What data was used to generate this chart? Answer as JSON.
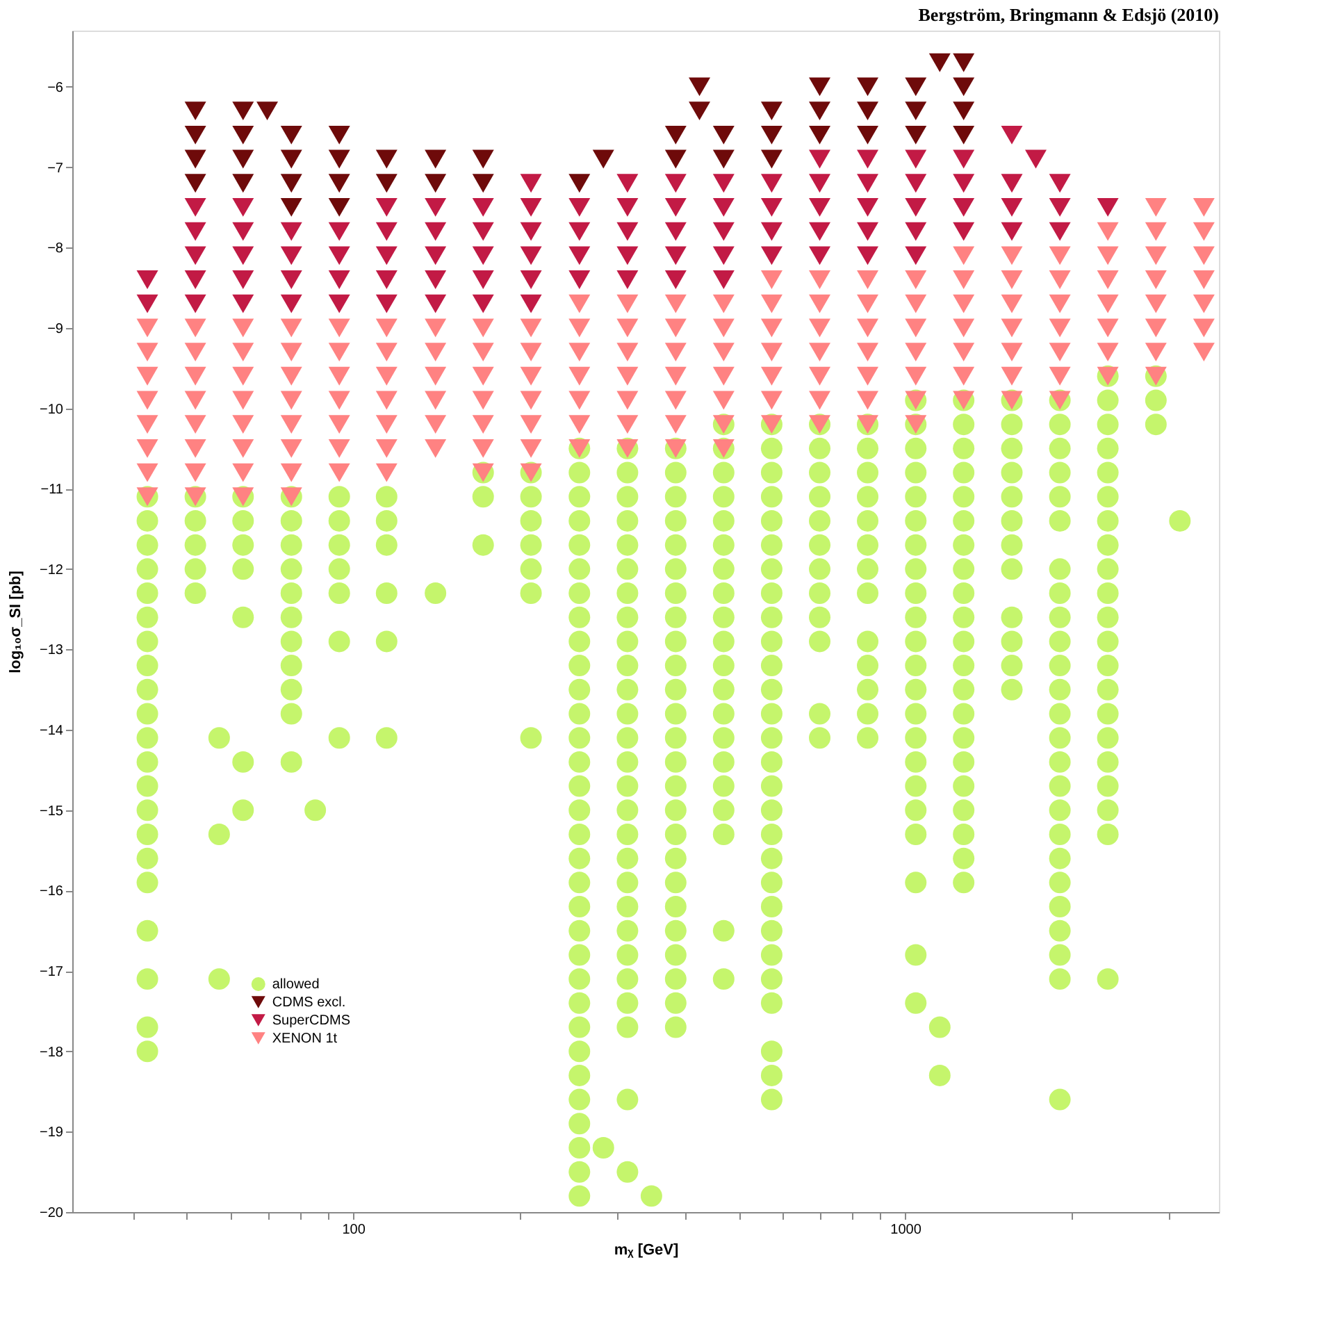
{
  "chart_data": {
    "type": "scatter",
    "xlabel": "mᵪ [GeV]",
    "ylabel": "log₁₀σ_SI [pb]",
    "annotations": [
      "Bergström, Bringmann & Edsjö (2010)"
    ],
    "log": "x",
    "xlim": [
      31,
      3700
    ],
    "ylim": [
      -20,
      -5.3
    ],
    "xticks": [
      {
        "value": 40,
        "label": null
      },
      {
        "value": 50,
        "label": null
      },
      {
        "value": 60,
        "label": null
      },
      {
        "value": 70,
        "label": null
      },
      {
        "value": 80,
        "label": null
      },
      {
        "value": 90,
        "label": null
      },
      100,
      {
        "value": 200,
        "label": null
      },
      {
        "value": 300,
        "label": null
      },
      {
        "value": 400,
        "label": null
      },
      {
        "value": 500,
        "label": null
      },
      {
        "value": 600,
        "label": null
      },
      {
        "value": 700,
        "label": null
      },
      {
        "value": 800,
        "label": null
      },
      {
        "value": 900,
        "label": null
      },
      1000,
      {
        "value": 2000,
        "label": null
      },
      {
        "value": 3000,
        "label": null
      }
    ],
    "yticks": [
      -20,
      -19,
      -18,
      -17,
      -16,
      -15,
      -14,
      -13,
      -12,
      -11,
      -10,
      -9,
      -8,
      -7,
      -6
    ],
    "legend": "bottom left",
    "series": [
      {
        "name": "allowed",
        "color": "#c5f56c",
        "marker": "circle",
        "x": [
          42.4,
          42.4,
          42.4,
          42.4,
          42.4,
          42.4,
          42.4,
          42.4,
          42.4,
          42.4,
          42.4,
          42.4,
          42.4,
          42.4,
          42.4,
          42.4,
          42.4,
          42.4,
          42.4,
          42.4,
          42.4,
          51.8,
          51.8,
          51.8,
          51.8,
          51.8,
          63.2,
          63.2,
          63.2,
          63.2,
          63.2,
          63.2,
          63.2,
          77.3,
          77.3,
          77.3,
          77.3,
          77.3,
          77.3,
          77.3,
          77.3,
          77.3,
          77.3,
          77.3,
          94.4,
          94.4,
          94.4,
          94.4,
          94.4,
          94.4,
          94.4,
          115,
          115,
          115,
          115,
          115,
          115,
          141,
          172,
          172,
          172,
          210,
          210,
          210,
          210,
          210,
          210,
          210,
          57.2,
          57.2,
          57.2,
          85.4,
          257,
          257,
          257,
          257,
          257,
          257,
          257,
          257,
          257,
          257,
          257,
          257,
          257,
          257,
          257,
          257,
          257,
          257,
          257,
          257,
          257,
          257,
          257,
          257,
          257,
          257,
          257,
          257,
          257,
          257,
          257,
          257,
          314,
          314,
          314,
          314,
          314,
          314,
          314,
          314,
          314,
          314,
          314,
          314,
          314,
          314,
          314,
          314,
          314,
          314,
          314,
          314,
          314,
          314,
          314,
          314,
          314,
          314,
          314,
          384,
          384,
          384,
          384,
          384,
          384,
          384,
          384,
          384,
          384,
          384,
          384,
          384,
          384,
          384,
          384,
          384,
          384,
          384,
          384,
          384,
          384,
          384,
          384,
          384,
          469,
          469,
          469,
          469,
          469,
          469,
          469,
          469,
          469,
          469,
          469,
          469,
          469,
          469,
          469,
          469,
          469,
          469,
          469,
          469,
          573,
          573,
          573,
          573,
          573,
          573,
          573,
          573,
          573,
          573,
          573,
          573,
          573,
          573,
          573,
          573,
          573,
          573,
          573,
          573,
          573,
          573,
          573,
          573,
          573,
          573,
          573,
          573,
          700,
          700,
          700,
          700,
          700,
          700,
          700,
          700,
          700,
          700,
          700,
          700,
          855,
          855,
          855,
          855,
          855,
          855,
          855,
          855,
          855,
          855,
          855,
          855,
          855,
          1045,
          1045,
          1045,
          1045,
          1045,
          1045,
          1045,
          1045,
          1045,
          1045,
          1045,
          1045,
          1045,
          1045,
          1045,
          1045,
          1045,
          1045,
          1045,
          1045,
          1045,
          1045,
          1276,
          1276,
          1276,
          1276,
          1276,
          1276,
          1276,
          1276,
          1276,
          1276,
          1276,
          1276,
          1276,
          1276,
          1276,
          1276,
          1276,
          1276,
          1276,
          1276,
          1276,
          1560,
          1560,
          1560,
          1560,
          1560,
          1560,
          1560,
          1560,
          1560,
          1560,
          1560,
          1560,
          1906,
          1906,
          1906,
          1906,
          1906,
          1906,
          1906,
          1906,
          1906,
          1906,
          1906,
          1906,
          1906,
          1906,
          1906,
          1906,
          1906,
          1906,
          1906,
          1906,
          1906,
          1906,
          1906,
          1906,
          1906,
          2328,
          2328,
          2328,
          2328,
          2328,
          2328,
          2328,
          2328,
          2328,
          2328,
          2328,
          2328,
          2328,
          2328,
          2328,
          2328,
          2328,
          2328,
          2328,
          2328,
          2328,
          2845,
          2845,
          2845,
          3144,
          284,
          347,
          1155,
          1155
        ],
        "values": [
          -11.1,
          -11.4,
          -11.7,
          -12.0,
          -12.3,
          -12.6,
          -12.9,
          -13.2,
          -13.5,
          -13.8,
          -14.1,
          -14.4,
          -14.7,
          -15.0,
          -15.3,
          -15.6,
          -15.9,
          -16.5,
          -17.1,
          -17.7,
          -18.0,
          -11.1,
          -11.4,
          -11.7,
          -12.0,
          -12.3,
          -11.1,
          -11.4,
          -11.7,
          -12.0,
          -12.6,
          -14.4,
          -15.0,
          -11.1,
          -11.4,
          -11.7,
          -12.0,
          -12.3,
          -12.6,
          -12.9,
          -13.2,
          -13.5,
          -13.8,
          -14.4,
          -11.1,
          -11.4,
          -11.7,
          -12.0,
          -12.3,
          -12.9,
          -14.1,
          -11.1,
          -11.4,
          -11.7,
          -12.3,
          -12.9,
          -14.1,
          -12.3,
          -10.8,
          -11.1,
          -11.7,
          -10.8,
          -11.1,
          -11.4,
          -11.7,
          -12.0,
          -12.3,
          -14.1,
          -14.1,
          -15.3,
          -17.1,
          -15.0,
          -10.5,
          -10.8,
          -11.1,
          -11.4,
          -11.7,
          -12.0,
          -12.3,
          -12.6,
          -12.9,
          -13.2,
          -13.5,
          -13.8,
          -14.1,
          -14.4,
          -14.7,
          -15.0,
          -15.3,
          -15.6,
          -15.9,
          -16.2,
          -16.5,
          -16.8,
          -17.1,
          -17.4,
          -17.7,
          -18.0,
          -18.3,
          -18.6,
          -18.9,
          -19.2,
          -19.5,
          -19.8,
          -10.5,
          -10.8,
          -11.1,
          -11.4,
          -11.7,
          -12.0,
          -12.3,
          -12.6,
          -12.9,
          -13.2,
          -13.5,
          -13.8,
          -14.1,
          -14.4,
          -14.7,
          -15.0,
          -15.3,
          -15.6,
          -15.9,
          -16.2,
          -16.5,
          -16.8,
          -17.1,
          -17.4,
          -17.7,
          -18.6,
          -19.5,
          -10.5,
          -10.8,
          -11.1,
          -11.4,
          -11.7,
          -12.0,
          -12.3,
          -12.6,
          -12.9,
          -13.2,
          -13.5,
          -13.8,
          -14.1,
          -14.4,
          -14.7,
          -15.0,
          -15.3,
          -15.6,
          -15.9,
          -16.2,
          -16.5,
          -16.8,
          -17.1,
          -17.4,
          -17.7,
          -10.2,
          -10.5,
          -10.8,
          -11.1,
          -11.4,
          -11.7,
          -12.0,
          -12.3,
          -12.6,
          -12.9,
          -13.2,
          -13.5,
          -13.8,
          -14.1,
          -14.4,
          -14.7,
          -15.0,
          -15.3,
          -16.5,
          -17.1,
          -10.2,
          -10.5,
          -10.8,
          -11.1,
          -11.4,
          -11.7,
          -12.0,
          -12.3,
          -12.6,
          -12.9,
          -13.2,
          -13.5,
          -13.8,
          -14.1,
          -14.4,
          -14.7,
          -15.0,
          -15.3,
          -15.6,
          -15.9,
          -16.2,
          -16.5,
          -16.8,
          -17.1,
          -17.4,
          -18.0,
          -18.3,
          -18.6,
          -10.2,
          -10.5,
          -10.8,
          -11.1,
          -11.4,
          -11.7,
          -12.0,
          -12.3,
          -12.6,
          -12.9,
          -13.8,
          -14.1,
          -10.2,
          -10.5,
          -10.8,
          -11.1,
          -11.4,
          -11.7,
          -12.0,
          -12.3,
          -12.9,
          -13.2,
          -13.5,
          -13.8,
          -14.1,
          -9.9,
          -10.2,
          -10.5,
          -10.8,
          -11.1,
          -11.4,
          -11.7,
          -12.0,
          -12.3,
          -12.6,
          -12.9,
          -13.2,
          -13.5,
          -13.8,
          -14.1,
          -14.4,
          -14.7,
          -15.0,
          -15.3,
          -15.9,
          -16.8,
          -17.4,
          -9.9,
          -10.2,
          -10.5,
          -10.8,
          -11.1,
          -11.4,
          -11.7,
          -12.0,
          -12.3,
          -12.6,
          -12.9,
          -13.2,
          -13.5,
          -13.8,
          -14.1,
          -14.4,
          -14.7,
          -15.0,
          -15.3,
          -15.6,
          -15.9,
          -9.9,
          -10.2,
          -10.5,
          -10.8,
          -11.1,
          -11.4,
          -11.7,
          -12.0,
          -12.6,
          -12.9,
          -13.2,
          -13.5,
          -9.9,
          -10.2,
          -10.5,
          -10.8,
          -11.1,
          -11.4,
          -12.0,
          -12.3,
          -12.6,
          -12.9,
          -13.2,
          -13.5,
          -13.8,
          -14.1,
          -14.4,
          -14.7,
          -15.0,
          -15.3,
          -15.6,
          -15.9,
          -16.2,
          -16.5,
          -16.8,
          -17.1,
          -18.6,
          -9.6,
          -9.9,
          -10.2,
          -10.5,
          -10.8,
          -11.1,
          -11.4,
          -11.7,
          -12.0,
          -12.3,
          -12.6,
          -12.9,
          -13.2,
          -13.5,
          -13.8,
          -14.1,
          -14.4,
          -14.7,
          -15.0,
          -15.3,
          -17.1,
          -9.6,
          -9.9,
          -10.2,
          -11.4,
          -19.2,
          -19.8,
          -17.7,
          -18.3
        ]
      },
      {
        "name": "CDMS excl.",
        "color": "#6e0a0a",
        "marker": "triangle",
        "x": [
          1155,
          1276,
          424,
          700,
          855,
          1045,
          1276,
          51.8,
          63.2,
          69.9,
          424,
          573,
          700,
          855,
          1045,
          1276,
          51.8,
          63.2,
          77.3,
          94.4,
          384,
          469,
          573,
          700,
          855,
          1045,
          1276,
          51.8,
          63.2,
          77.3,
          94.4,
          115,
          141,
          172,
          284,
          384,
          469,
          573,
          51.8,
          63.2,
          77.3,
          94.4,
          115,
          141,
          172,
          257,
          77.3,
          94.4
        ],
        "values": [
          -5.7,
          -5.7,
          -6.0,
          -6.0,
          -6.0,
          -6.0,
          -6.0,
          -6.3,
          -6.3,
          -6.3,
          -6.3,
          -6.3,
          -6.3,
          -6.3,
          -6.3,
          -6.3,
          -6.6,
          -6.6,
          -6.6,
          -6.6,
          -6.6,
          -6.6,
          -6.6,
          -6.6,
          -6.6,
          -6.6,
          -6.6,
          -6.9,
          -6.9,
          -6.9,
          -6.9,
          -6.9,
          -6.9,
          -6.9,
          -6.9,
          -6.9,
          -6.9,
          -6.9,
          -7.2,
          -7.2,
          -7.2,
          -7.2,
          -7.2,
          -7.2,
          -7.2,
          -7.2,
          -7.5,
          -7.5
        ]
      },
      {
        "name": "SuperCDMS",
        "color": "#c21a45",
        "marker": "triangle",
        "x": [
          1560,
          700,
          855,
          1045,
          1276,
          1724,
          210,
          314,
          384,
          469,
          573,
          700,
          855,
          1045,
          1276,
          1560,
          1906,
          51.8,
          63.2,
          115,
          141,
          172,
          210,
          257,
          314,
          384,
          469,
          573,
          700,
          855,
          1045,
          1276,
          1560,
          1906,
          2328,
          51.8,
          63.2,
          77.3,
          94.4,
          115,
          141,
          172,
          210,
          257,
          314,
          384,
          469,
          573,
          700,
          855,
          1045,
          1276,
          1560,
          1906,
          51.8,
          63.2,
          77.3,
          94.4,
          115,
          141,
          172,
          210,
          257,
          314,
          384,
          469,
          573,
          700,
          855,
          1045,
          42.4,
          51.8,
          63.2,
          77.3,
          94.4,
          115,
          141,
          172,
          210,
          257,
          314,
          384,
          469,
          42.4,
          51.8,
          63.2,
          77.3,
          94.4,
          115,
          141,
          172,
          210
        ],
        "values": [
          -6.6,
          -6.9,
          -6.9,
          -6.9,
          -6.9,
          -6.9,
          -7.2,
          -7.2,
          -7.2,
          -7.2,
          -7.2,
          -7.2,
          -7.2,
          -7.2,
          -7.2,
          -7.2,
          -7.2,
          -7.5,
          -7.5,
          -7.5,
          -7.5,
          -7.5,
          -7.5,
          -7.5,
          -7.5,
          -7.5,
          -7.5,
          -7.5,
          -7.5,
          -7.5,
          -7.5,
          -7.5,
          -7.5,
          -7.5,
          -7.5,
          -7.8,
          -7.8,
          -7.8,
          -7.8,
          -7.8,
          -7.8,
          -7.8,
          -7.8,
          -7.8,
          -7.8,
          -7.8,
          -7.8,
          -7.8,
          -7.8,
          -7.8,
          -7.8,
          -7.8,
          -7.8,
          -7.8,
          -8.1,
          -8.1,
          -8.1,
          -8.1,
          -8.1,
          -8.1,
          -8.1,
          -8.1,
          -8.1,
          -8.1,
          -8.1,
          -8.1,
          -8.1,
          -8.1,
          -8.1,
          -8.1,
          -8.4,
          -8.4,
          -8.4,
          -8.4,
          -8.4,
          -8.4,
          -8.4,
          -8.4,
          -8.4,
          -8.4,
          -8.4,
          -8.4,
          -8.4,
          -8.7,
          -8.7,
          -8.7,
          -8.7,
          -8.7,
          -8.7,
          -8.7,
          -8.7,
          -8.7
        ]
      },
      {
        "name": "XENON 1t",
        "color": "#ff8282",
        "marker": "triangle",
        "x": [
          2845,
          3475,
          2328,
          2845,
          3475,
          1276,
          1560,
          1906,
          2328,
          2845,
          3475,
          573,
          700,
          855,
          1045,
          1276,
          1560,
          1906,
          2328,
          2845,
          3475,
          257,
          314,
          384,
          469,
          573,
          700,
          855,
          1045,
          1276,
          1560,
          1906,
          2328,
          2845,
          3475,
          42.4,
          51.8,
          63.2,
          77.3,
          94.4,
          115,
          141,
          172,
          210,
          257,
          314,
          384,
          469,
          573,
          700,
          855,
          1045,
          1276,
          1560,
          1906,
          2328,
          2845,
          3475,
          42.4,
          51.8,
          63.2,
          77.3,
          94.4,
          115,
          141,
          172,
          210,
          257,
          314,
          384,
          469,
          573,
          700,
          855,
          1045,
          1276,
          1560,
          1906,
          2328,
          2845,
          3475,
          42.4,
          51.8,
          63.2,
          77.3,
          94.4,
          115,
          141,
          172,
          210,
          257,
          314,
          384,
          469,
          573,
          700,
          855,
          1045,
          1276,
          1560,
          1906,
          2328,
          2845,
          42.4,
          51.8,
          63.2,
          77.3,
          94.4,
          115,
          141,
          172,
          210,
          257,
          314,
          384,
          469,
          573,
          700,
          855,
          1045,
          1276,
          1560,
          1906,
          42.4,
          51.8,
          63.2,
          77.3,
          94.4,
          115,
          141,
          172,
          210,
          257,
          314,
          384,
          469,
          573,
          700,
          855,
          1045,
          42.4,
          51.8,
          63.2,
          77.3,
          94.4,
          115,
          141,
          172,
          210,
          257,
          314,
          384,
          469,
          42.4,
          51.8,
          63.2,
          77.3,
          94.4,
          115,
          172,
          210,
          42.4,
          51.8,
          63.2,
          77.3
        ],
        "values": [
          -7.5,
          -7.5,
          -7.8,
          -7.8,
          -7.8,
          -8.1,
          -8.1,
          -8.1,
          -8.1,
          -8.1,
          -8.1,
          -8.4,
          -8.4,
          -8.4,
          -8.4,
          -8.4,
          -8.4,
          -8.4,
          -8.4,
          -8.4,
          -8.4,
          -8.7,
          -8.7,
          -8.7,
          -8.7,
          -8.7,
          -8.7,
          -8.7,
          -8.7,
          -8.7,
          -8.7,
          -8.7,
          -8.7,
          -8.7,
          -8.7,
          -9.0,
          -9.0,
          -9.0,
          -9.0,
          -9.0,
          -9.0,
          -9.0,
          -9.0,
          -9.0,
          -9.0,
          -9.0,
          -9.0,
          -9.0,
          -9.0,
          -9.0,
          -9.0,
          -9.0,
          -9.0,
          -9.0,
          -9.0,
          -9.0,
          -9.0,
          -9.0,
          -9.3,
          -9.3,
          -9.3,
          -9.3,
          -9.3,
          -9.3,
          -9.3,
          -9.3,
          -9.3,
          -9.3,
          -9.3,
          -9.3,
          -9.3,
          -9.3,
          -9.3,
          -9.3,
          -9.3,
          -9.3,
          -9.3,
          -9.3,
          -9.3,
          -9.3,
          -9.3,
          -9.6,
          -9.6,
          -9.6,
          -9.6,
          -9.6,
          -9.6,
          -9.6,
          -9.6,
          -9.6,
          -9.6,
          -9.6,
          -9.6,
          -9.6,
          -9.6,
          -9.6,
          -9.6,
          -9.6,
          -9.6,
          -9.6,
          -9.6,
          -9.6,
          -9.6,
          -9.9,
          -9.9,
          -9.9,
          -9.9,
          -9.9,
          -9.9,
          -9.9,
          -9.9,
          -9.9,
          -9.9,
          -9.9,
          -9.9,
          -9.9,
          -9.9,
          -9.9,
          -9.9,
          -9.9,
          -9.9,
          -9.9,
          -9.9,
          -10.2,
          -10.2,
          -10.2,
          -10.2,
          -10.2,
          -10.2,
          -10.2,
          -10.2,
          -10.2,
          -10.2,
          -10.2,
          -10.2,
          -10.2,
          -10.2,
          -10.2,
          -10.2,
          -10.2,
          -10.5,
          -10.5,
          -10.5,
          -10.5,
          -10.5,
          -10.5,
          -10.5,
          -10.5,
          -10.5,
          -10.5,
          -10.5,
          -10.5,
          -10.5,
          -10.8,
          -10.8,
          -10.8,
          -10.8,
          -10.8,
          -10.8,
          -10.8,
          -10.8,
          -11.1,
          -11.1,
          -11.1,
          -11.1
        ]
      }
    ]
  }
}
